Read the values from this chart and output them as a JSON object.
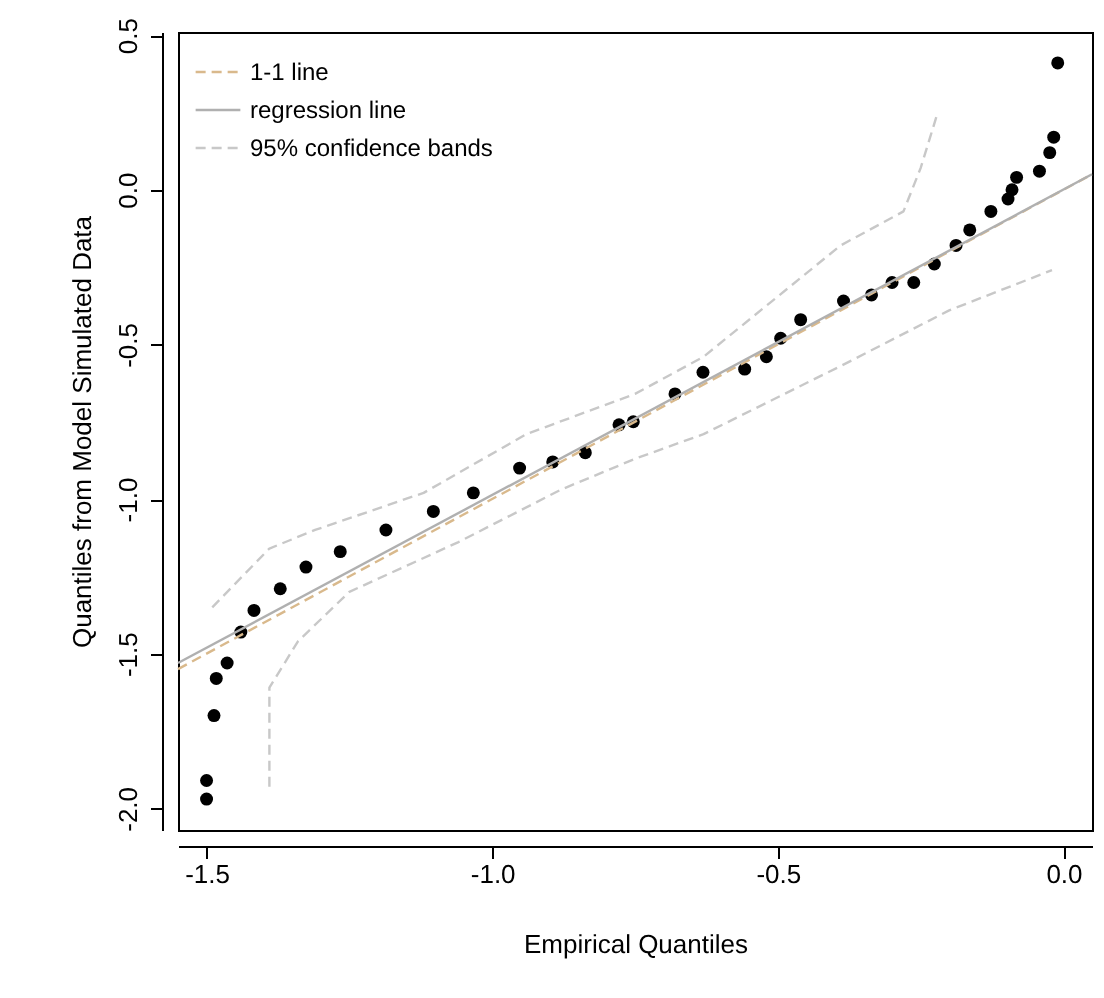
{
  "chart_data": {
    "type": "scatter",
    "xlabel": "Empirical Quantiles",
    "ylabel": "Quantiles from Model Simulated Data",
    "xlim": [
      -1.55,
      0.05
    ],
    "ylim": [
      -2.07,
      0.51
    ],
    "xticks": [
      {
        "value": -1.5,
        "label": "-1.5"
      },
      {
        "value": -1,
        "label": "-1.0"
      },
      {
        "value": -0.5,
        "label": "-0.5"
      },
      {
        "value": 0,
        "label": "0.0"
      }
    ],
    "yticks": [
      {
        "value": -2,
        "label": "-2.0"
      },
      {
        "value": -1.5,
        "label": "-1.5"
      },
      {
        "value": -1,
        "label": "-1.0"
      },
      {
        "value": -0.5,
        "label": "-0.5"
      },
      {
        "value": 0,
        "label": "0.0"
      },
      {
        "value": 0.5,
        "label": "0.5"
      }
    ],
    "legend": "top left",
    "series": [
      {
        "color": "#000000",
        "marker": "circle",
        "x": [
          -1.5,
          -1.5,
          -1.487,
          -1.483,
          -1.464,
          -1.44,
          -1.417,
          -1.371,
          -1.326,
          -1.266,
          -1.186,
          -1.103,
          -1.033,
          -0.952,
          -0.894,
          -0.837,
          -0.778,
          -0.753,
          -0.68,
          -0.631,
          -0.558,
          -0.52,
          -0.495,
          -0.46,
          -0.385,
          -0.336,
          -0.3,
          -0.262,
          -0.226,
          -0.188,
          -0.164,
          -0.127,
          -0.097,
          -0.09,
          -0.082,
          -0.042,
          -0.024,
          -0.017,
          -0.01
        ],
        "values": [
          -1.97,
          -1.91,
          -1.7,
          -1.58,
          -1.53,
          -1.43,
          -1.36,
          -1.29,
          -1.22,
          -1.17,
          -1.1,
          -1.04,
          -0.98,
          -0.9,
          -0.88,
          -0.85,
          -0.76,
          -0.75,
          -0.66,
          -0.59,
          -0.58,
          -0.54,
          -0.48,
          -0.42,
          -0.36,
          -0.34,
          -0.3,
          -0.3,
          -0.24,
          -0.18,
          -0.13,
          -0.07,
          -0.03,
          0.0,
          0.04,
          0.06,
          0.12,
          0.17,
          0.41
        ]
      },
      {
        "type": "line",
        "name": "1-1 line",
        "color": "#d9b98c",
        "line_style": "dashed",
        "marker": "none",
        "x": [
          -1.55,
          0.05
        ],
        "values": [
          -1.55,
          0.05
        ]
      },
      {
        "type": "line",
        "name": "regression line",
        "color": "#b0b0b0",
        "line_style": "solid",
        "marker": "none",
        "x": [
          -1.55,
          0.05
        ],
        "values": [
          -1.53,
          0.05
        ]
      },
      {
        "type": "line",
        "name": "95% confidence bands",
        "color": "#c8c8c8",
        "line_style": "dashed",
        "marker": "none",
        "x": [
          -1.49,
          -1.39,
          -1.31,
          -1.12,
          -0.94,
          -0.75,
          -0.63,
          -0.51,
          -0.39,
          -0.28,
          -0.25,
          -0.22
        ],
        "values": [
          -1.35,
          -1.16,
          -1.1,
          -0.98,
          -0.79,
          -0.66,
          -0.54,
          -0.36,
          -0.18,
          -0.07,
          0.07,
          0.25
        ]
      },
      {
        "type": "line",
        "color": "#c8c8c8",
        "line_style": "dashed",
        "marker": "none",
        "x": [
          -1.39,
          -1.39,
          -1.34,
          -1.25,
          -1.06,
          -0.88,
          -0.75,
          -0.63,
          -0.39,
          -0.2,
          -0.02
        ],
        "values": [
          -1.93,
          -1.61,
          -1.46,
          -1.3,
          -1.14,
          -0.97,
          -0.87,
          -0.79,
          -0.57,
          -0.39,
          -0.26
        ]
      }
    ]
  }
}
